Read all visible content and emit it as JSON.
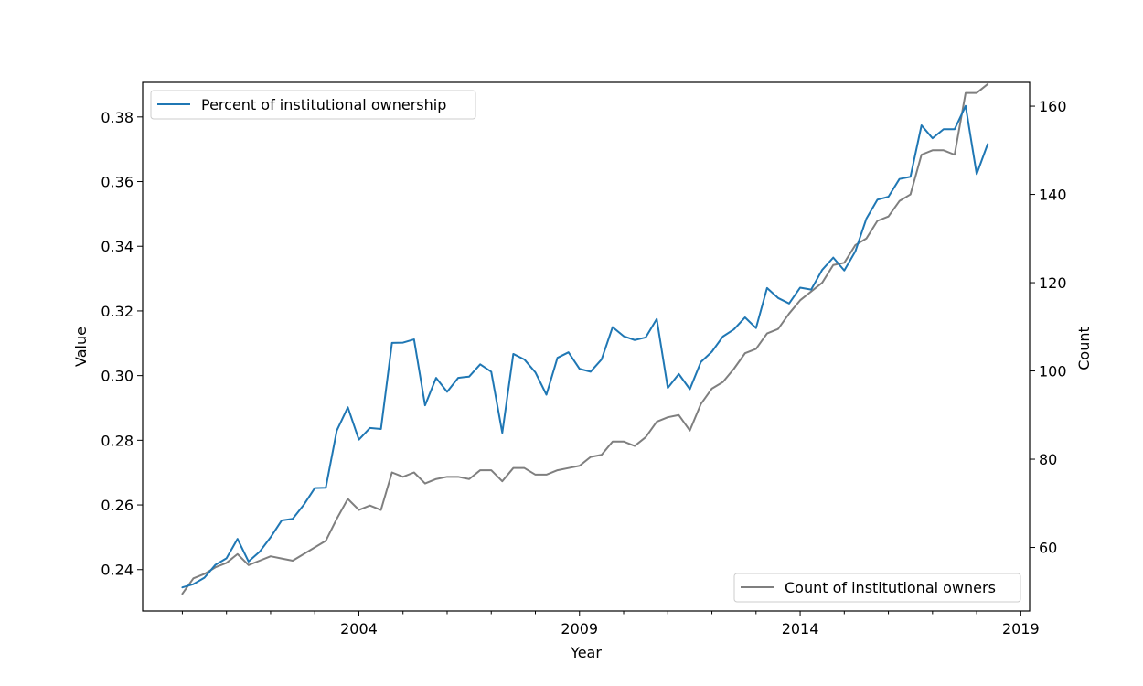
{
  "chart_data": {
    "type": "line",
    "xlabel": "Year",
    "ylabel_left": "Value",
    "ylabel_right": "Count",
    "xlim": [
      1999.1,
      2019.2
    ],
    "ylim_left": [
      0.2272,
      0.3907
    ],
    "ylim_right": [
      45.6,
      165.4
    ],
    "x_ticks": [
      {
        "value": 2004,
        "label": "2004"
      },
      {
        "value": 2009,
        "label": "2009"
      },
      {
        "value": 2014,
        "label": "2014"
      },
      {
        "value": 2019,
        "label": "2019"
      }
    ],
    "y_left_ticks": [
      {
        "value": 0.24,
        "label": "0.24"
      },
      {
        "value": 0.26,
        "label": "0.26"
      },
      {
        "value": 0.28,
        "label": "0.28"
      },
      {
        "value": 0.3,
        "label": "0.30"
      },
      {
        "value": 0.32,
        "label": "0.32"
      },
      {
        "value": 0.34,
        "label": "0.34"
      },
      {
        "value": 0.36,
        "label": "0.36"
      },
      {
        "value": 0.38,
        "label": "0.38"
      }
    ],
    "y_right_ticks": [
      {
        "value": 60,
        "label": "60"
      },
      {
        "value": 80,
        "label": "80"
      },
      {
        "value": 100,
        "label": "100"
      },
      {
        "value": 120,
        "label": "120"
      },
      {
        "value": 140,
        "label": "140"
      },
      {
        "value": 160,
        "label": "160"
      }
    ],
    "legend_left": {
      "label": "Percent of institutional ownership",
      "placement": "upper-left"
    },
    "legend_right": {
      "label": "Count of institutional owners",
      "placement": "lower-right"
    },
    "x": [
      2000.0,
      2000.25,
      2000.5,
      2000.75,
      2001.0,
      2001.25,
      2001.5,
      2001.75,
      2002.0,
      2002.25,
      2002.5,
      2002.75,
      2003.0,
      2003.25,
      2003.5,
      2003.75,
      2004.0,
      2004.25,
      2004.5,
      2004.75,
      2005.0,
      2005.25,
      2005.5,
      2005.75,
      2006.0,
      2006.25,
      2006.5,
      2006.75,
      2007.0,
      2007.25,
      2007.5,
      2007.75,
      2008.0,
      2008.25,
      2008.5,
      2008.75,
      2009.0,
      2009.25,
      2009.5,
      2009.75,
      2010.0,
      2010.25,
      2010.5,
      2010.75,
      2011.0,
      2011.25,
      2011.5,
      2011.75,
      2012.0,
      2012.25,
      2012.5,
      2012.75,
      2013.0,
      2013.25,
      2013.5,
      2013.75,
      2014.0,
      2014.25,
      2014.5,
      2014.75,
      2015.0,
      2015.25,
      2015.5,
      2015.75,
      2016.0,
      2016.25,
      2016.5,
      2016.75,
      2017.0,
      2017.25,
      2017.5,
      2017.75,
      2018.0,
      2018.25
    ],
    "series": [
      {
        "name": "Percent of institutional ownership",
        "axis": "left",
        "color": "#1f77b4",
        "values": [
          0.2345,
          0.2355,
          0.2375,
          0.2415,
          0.2435,
          0.2495,
          0.2425,
          0.2455,
          0.25,
          0.2552,
          0.2557,
          0.26,
          0.2652,
          0.2653,
          0.283,
          0.2902,
          0.2802,
          0.2838,
          0.2835,
          0.3101,
          0.3102,
          0.3112,
          0.2908,
          0.2993,
          0.295,
          0.2993,
          0.2997,
          0.3035,
          0.3012,
          0.2823,
          0.3067,
          0.305,
          0.301,
          0.2941,
          0.3055,
          0.3072,
          0.3021,
          0.3012,
          0.305,
          0.315,
          0.3122,
          0.311,
          0.3118,
          0.3175,
          0.2962,
          0.3005,
          0.2958,
          0.3042,
          0.3074,
          0.3121,
          0.3143,
          0.318,
          0.3147,
          0.3271,
          0.324,
          0.3223,
          0.3272,
          0.3266,
          0.3327,
          0.3365,
          0.3325,
          0.3384,
          0.3485,
          0.3544,
          0.3553,
          0.3608,
          0.3615,
          0.3774,
          0.3734,
          0.3762,
          0.3762,
          0.3834,
          0.3623,
          0.3716
        ]
      },
      {
        "name": "Count of institutional owners",
        "axis": "right",
        "color": "#7f7f7f",
        "values": [
          49.5,
          53.0,
          54.0,
          55.5,
          56.5,
          58.5,
          56.0,
          57.0,
          58.0,
          57.5,
          57.0,
          58.5,
          60.0,
          61.5,
          66.5,
          71.0,
          68.5,
          69.5,
          68.5,
          77.0,
          76.0,
          77.0,
          74.5,
          75.5,
          76.0,
          76.0,
          75.5,
          77.5,
          77.5,
          75.0,
          78.0,
          78.0,
          76.5,
          76.5,
          77.5,
          78.0,
          78.5,
          80.5,
          81.0,
          84.0,
          84.0,
          83.0,
          85.0,
          88.5,
          89.5,
          90.0,
          86.5,
          92.5,
          96.0,
          97.5,
          100.5,
          104.0,
          105.0,
          108.5,
          109.5,
          113.0,
          116.0,
          118.0,
          120.0,
          124.0,
          124.5,
          128.5,
          130.0,
          134.0,
          135.0,
          138.5,
          140.0,
          149.0,
          150.0,
          150.0,
          149.0,
          163.0,
          163.0,
          165.0
        ]
      }
    ]
  }
}
